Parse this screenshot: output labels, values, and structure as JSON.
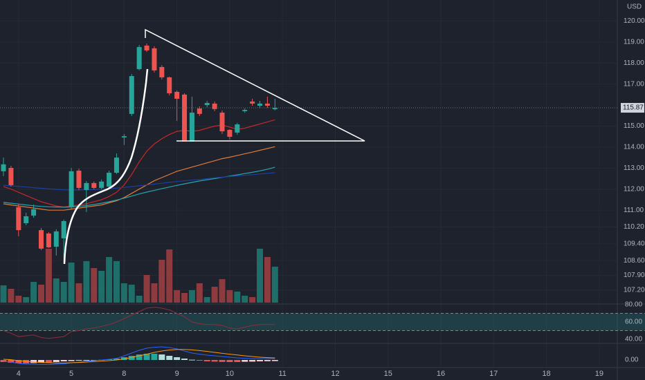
{
  "chart_data": {
    "type": "candlestick",
    "currency": "USD",
    "xlim": [
      -0.46,
      81.4
    ],
    "xticks": [
      {
        "value": 2,
        "label": "4"
      },
      {
        "value": 9,
        "label": "5"
      },
      {
        "value": 16,
        "label": "8"
      },
      {
        "value": 23,
        "label": "9"
      },
      {
        "value": 30,
        "label": "10"
      },
      {
        "value": 37,
        "label": "11"
      },
      {
        "value": 44,
        "label": "12"
      },
      {
        "value": 51,
        "label": "15"
      },
      {
        "value": 58,
        "label": "16"
      },
      {
        "value": 65,
        "label": "17"
      },
      {
        "value": 72,
        "label": "18"
      },
      {
        "value": 79,
        "label": "19"
      }
    ],
    "ylim": [
      106.6,
      121.0
    ],
    "yticks": [
      {
        "value": 120,
        "label": "120.00"
      },
      {
        "value": 119,
        "label": "119.00"
      },
      {
        "value": 118,
        "label": "118.00"
      },
      {
        "value": 117,
        "label": "117.00"
      },
      {
        "value": 115,
        "label": "115.00"
      },
      {
        "value": 114,
        "label": "114.00"
      },
      {
        "value": 113,
        "label": "113.00"
      },
      {
        "value": 112,
        "label": "112.00"
      },
      {
        "value": 111,
        "label": "111.00"
      },
      {
        "value": 110.2,
        "label": "110.20"
      },
      {
        "value": 109.4,
        "label": "109.40"
      },
      {
        "value": 108.6,
        "label": "108.60"
      },
      {
        "value": 107.9,
        "label": "107.90"
      },
      {
        "value": 107.2,
        "label": "107.20"
      }
    ],
    "grid": true,
    "up_color": "#26a69a",
    "down_color": "#ef5350",
    "open": [
      112.85,
      113.01,
      111.14,
      110.38,
      110.74,
      110.05,
      109.89,
      109.26,
      109.66,
      111.14,
      112.88,
      111.96,
      112.29,
      112.06,
      112.12,
      112.78,
      114.46,
      115.58,
      117.71,
      118.83,
      118.7,
      117.81,
      117.32,
      116.63,
      116.5,
      114.26,
      115.84,
      116.0,
      116.07,
      115.64,
      114.82,
      114.69,
      115.71,
      116.17,
      115.97,
      116.07,
      115.8
    ],
    "high": [
      113.5,
      113.11,
      111.27,
      110.88,
      111.27,
      110.15,
      109.95,
      110.09,
      110.55,
      113.01,
      112.98,
      112.39,
      112.36,
      112.46,
      112.88,
      113.7,
      114.62,
      117.48,
      118.86,
      118.93,
      118.8,
      117.9,
      117.35,
      116.69,
      116.56,
      116.4,
      115.94,
      116.2,
      116.17,
      115.74,
      114.85,
      115.15,
      115.84,
      116.3,
      116.2,
      116.4,
      116.3
    ],
    "low": [
      112.62,
      112.12,
      109.76,
      110.28,
      110.64,
      109.1,
      109.2,
      108.84,
      108.51,
      111.07,
      111.96,
      110.91,
      111.99,
      111.99,
      112.06,
      112.72,
      114.1,
      115.48,
      117.65,
      118.53,
      117.55,
      117.22,
      116.46,
      115.25,
      114.26,
      114.26,
      115.48,
      115.9,
      115.71,
      114.62,
      114.36,
      114.59,
      115.64,
      115.97,
      115.84,
      115.87,
      115.75
    ],
    "close": [
      113.18,
      112.19,
      110.05,
      110.71,
      111.04,
      109.17,
      109.23,
      109.99,
      110.48,
      112.85,
      112.06,
      112.29,
      112.06,
      112.36,
      112.78,
      113.5,
      114.52,
      117.38,
      118.76,
      118.6,
      117.65,
      117.32,
      116.56,
      116.3,
      114.26,
      115.64,
      115.58,
      116.1,
      115.81,
      114.75,
      114.49,
      115.08,
      115.77,
      116.07,
      116.07,
      115.97,
      115.87
    ],
    "series": [
      {
        "color": "#c62828",
        "values": [
          112.12,
          112.0,
          111.85,
          111.7,
          111.55,
          111.4,
          111.3,
          111.2,
          111.15,
          111.2,
          111.25,
          111.3,
          111.4,
          111.5,
          111.65,
          111.85,
          112.2,
          112.7,
          113.3,
          113.8,
          114.15,
          114.4,
          114.6,
          114.75,
          114.8,
          114.75,
          114.8,
          114.9,
          115.0,
          115.05,
          114.95,
          114.85,
          114.9,
          115.0,
          115.1,
          115.2,
          115.3
        ]
      },
      {
        "color": "#e07b39",
        "values": [
          111.3,
          111.25,
          111.2,
          111.15,
          111.1,
          111.05,
          111.0,
          111.0,
          111.0,
          111.05,
          111.1,
          111.15,
          111.2,
          111.25,
          111.35,
          111.45,
          111.6,
          111.8,
          112.0,
          112.2,
          112.4,
          112.55,
          112.7,
          112.85,
          112.95,
          113.05,
          113.15,
          113.25,
          113.35,
          113.45,
          113.52,
          113.6,
          113.68,
          113.76,
          113.85,
          113.93,
          114.02
        ]
      },
      {
        "color": "#26a6b0",
        "values": [
          111.37,
          111.33,
          111.29,
          111.25,
          111.21,
          111.18,
          111.16,
          111.15,
          111.14,
          111.15,
          111.18,
          111.22,
          111.27,
          111.33,
          111.4,
          111.48,
          111.57,
          111.67,
          111.77,
          111.86,
          111.94,
          112.02,
          112.1,
          112.18,
          112.25,
          112.32,
          112.39,
          112.45,
          112.5,
          112.56,
          112.62,
          112.68,
          112.74,
          112.8,
          112.87,
          112.95,
          113.04
        ]
      },
      {
        "color": "#1a3f9e",
        "values": [
          112.19,
          112.16,
          112.13,
          112.1,
          112.07,
          112.04,
          112.01,
          111.99,
          111.97,
          111.96,
          111.96,
          111.97,
          111.98,
          112.0,
          112.02,
          112.05,
          112.08,
          112.12,
          112.16,
          112.2,
          112.24,
          112.28,
          112.32,
          112.36,
          112.4,
          112.43,
          112.46,
          112.5,
          112.54,
          112.57,
          112.6,
          112.63,
          112.66,
          112.69,
          112.72,
          112.75,
          112.78
        ]
      }
    ],
    "volume": {
      "ylim": [
        0,
        100
      ],
      "up_color": "#1f6e69",
      "down_color": "#8e3b3f",
      "values": [
        25,
        20,
        10,
        8,
        30,
        26,
        78,
        35,
        30,
        58,
        28,
        60,
        50,
        46,
        66,
        60,
        28,
        26,
        10,
        40,
        28,
        62,
        77,
        18,
        14,
        18,
        28,
        8,
        23,
        34,
        18,
        16,
        10,
        8,
        78,
        66,
        52
      ]
    },
    "rsi": {
      "ylim": [
        35.2,
        80.8
      ],
      "yticks": [
        {
          "value": 80,
          "label": "80.00"
        },
        {
          "value": 60,
          "label": "60.00"
        },
        {
          "value": 40,
          "label": "40.00"
        }
      ],
      "band": [
        50,
        70
      ],
      "color": "#8e2f3c",
      "values": [
        50,
        47,
        43,
        44,
        45,
        42,
        41,
        42,
        43,
        49,
        50,
        52,
        53,
        55,
        57,
        60,
        64,
        68,
        72,
        76,
        77,
        76,
        74,
        70,
        66,
        60,
        58,
        57,
        57,
        56,
        53,
        52,
        54,
        56,
        57,
        57,
        57
      ]
    },
    "macd": {
      "ylim": [
        -0.55,
        1.15
      ],
      "yticks": [
        {
          "value": 0,
          "label": "0.00"
        }
      ],
      "macd_color": "#2962ff",
      "signal_color": "#ff9800",
      "histogram": [
        -0.15,
        -0.2,
        -0.25,
        -0.25,
        -0.22,
        -0.2,
        -0.2,
        -0.15,
        -0.1,
        -0.08,
        -0.05,
        -0.03,
        -0.02,
        0.02,
        0.05,
        0.1,
        0.2,
        0.3,
        0.4,
        0.45,
        0.45,
        0.4,
        0.3,
        0.2,
        0.1,
        0.02,
        -0.05,
        -0.1,
        -0.12,
        -0.14,
        -0.15,
        -0.15,
        -0.13,
        -0.12,
        -0.1,
        -0.09,
        -0.08
      ],
      "macd": [
        -0.1,
        -0.15,
        -0.25,
        -0.3,
        -0.3,
        -0.32,
        -0.33,
        -0.3,
        -0.28,
        -0.2,
        -0.15,
        -0.1,
        -0.05,
        0.0,
        0.05,
        0.12,
        0.3,
        0.5,
        0.7,
        0.85,
        0.92,
        0.95,
        0.9,
        0.8,
        0.65,
        0.5,
        0.42,
        0.35,
        0.3,
        0.25,
        0.2,
        0.15,
        0.12,
        0.1,
        0.1,
        0.1,
        0.1
      ],
      "signal": [
        0.05,
        0.02,
        -0.05,
        -0.1,
        -0.15,
        -0.18,
        -0.2,
        -0.22,
        -0.22,
        -0.2,
        -0.18,
        -0.15,
        -0.12,
        -0.08,
        -0.05,
        0.0,
        0.08,
        0.18,
        0.3,
        0.42,
        0.55,
        0.65,
        0.72,
        0.76,
        0.76,
        0.73,
        0.68,
        0.62,
        0.55,
        0.48,
        0.42,
        0.36,
        0.3,
        0.25,
        0.2,
        0.17,
        0.15
      ]
    }
  }
}
